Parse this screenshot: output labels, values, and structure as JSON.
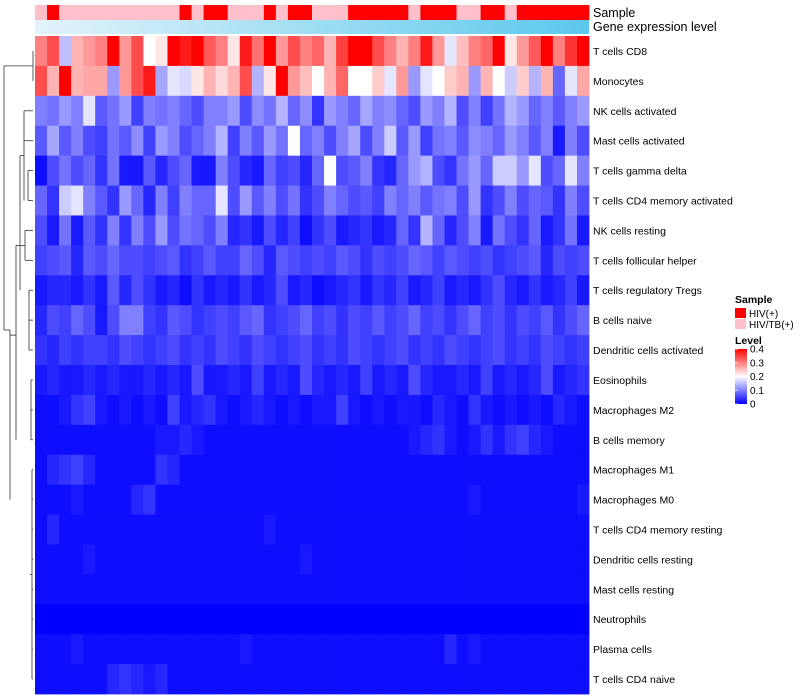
{
  "chart_data": {
    "type": "heatmap",
    "title": "",
    "annotation_tracks": [
      {
        "name": "Sample",
        "label": "Sample"
      },
      {
        "name": "Gene expression level",
        "label": "Gene expression level"
      }
    ],
    "n_samples": 46,
    "sample_groups": [
      "HIV/TB(+)",
      "HIV(+)",
      "HIV/TB(+)",
      "HIV/TB(+)",
      "HIV/TB(+)",
      "HIV/TB(+)",
      "HIV/TB(+)",
      "HIV/TB(+)",
      "HIV/TB(+)",
      "HIV/TB(+)",
      "HIV/TB(+)",
      "HIV/TB(+)",
      "HIV(+)",
      "HIV/TB(+)",
      "HIV(+)",
      "HIV(+)",
      "HIV/TB(+)",
      "HIV/TB(+)",
      "HIV/TB(+)",
      "HIV(+)",
      "HIV/TB(+)",
      "HIV(+)",
      "HIV(+)",
      "HIV/TB(+)",
      "HIV/TB(+)",
      "HIV/TB(+)",
      "HIV(+)",
      "HIV(+)",
      "HIV(+)",
      "HIV(+)",
      "HIV(+)",
      "HIV/TB(+)",
      "HIV(+)",
      "HIV(+)",
      "HIV(+)",
      "HIV/TB(+)",
      "HIV/TB(+)",
      "HIV(+)",
      "HIV(+)",
      "HIV/TB(+)",
      "HIV(+)",
      "HIV(+)",
      "HIV(+)",
      "HIV(+)",
      "HIV(+)",
      "HIV(+)"
    ],
    "rows": [
      "T cells CD8",
      "Monocytes",
      "NK cells activated",
      "Mast cells activated",
      "T cells gamma delta",
      "T cells CD4 memory activated",
      "NK cells resting",
      "T cells follicular helper",
      "T cells regulatory  Tregs",
      "B cells naive",
      "Dendritic cells activated",
      "Eosinophils",
      "Macrophages M2",
      "B cells memory",
      "Macrophages M1",
      "Macrophages M0",
      "T cells CD4 memory resting",
      "Dendritic cells resting",
      "Mast cells resting",
      "Neutrophils",
      "Plasma cells",
      "T cells CD4 naive"
    ],
    "values": [
      [
        0.3,
        0.34,
        0.15,
        0.26,
        0.28,
        0.3,
        0.42,
        0.28,
        0.34,
        0.2,
        0.22,
        0.42,
        0.38,
        0.42,
        0.33,
        0.3,
        0.22,
        0.38,
        0.31,
        0.42,
        0.28,
        0.34,
        0.3,
        0.32,
        0.26,
        0.35,
        0.42,
        0.42,
        0.34,
        0.3,
        0.26,
        0.3,
        0.38,
        0.28,
        0.18,
        0.25,
        0.3,
        0.32,
        0.4,
        0.22,
        0.28,
        0.33,
        0.42,
        0.3,
        0.36,
        0.4
      ],
      [
        0.34,
        0.26,
        0.4,
        0.26,
        0.27,
        0.27,
        0.12,
        0.28,
        0.34,
        0.38,
        0.13,
        0.18,
        0.17,
        0.22,
        0.26,
        0.23,
        0.26,
        0.34,
        0.14,
        0.22,
        0.4,
        0.28,
        0.25,
        0.2,
        0.26,
        0.32,
        0.2,
        0.2,
        0.24,
        0.18,
        0.28,
        0.12,
        0.18,
        0.2,
        0.24,
        0.26,
        0.12,
        0.26,
        0.2,
        0.16,
        0.24,
        0.14,
        0.26,
        0.08,
        0.18,
        0.27
      ],
      [
        0.1,
        0.09,
        0.12,
        0.1,
        0.18,
        0.07,
        0.09,
        0.12,
        0.05,
        0.1,
        0.09,
        0.1,
        0.08,
        0.06,
        0.1,
        0.1,
        0.12,
        0.06,
        0.11,
        0.09,
        0.14,
        0.08,
        0.11,
        0.04,
        0.12,
        0.1,
        0.08,
        0.13,
        0.1,
        0.11,
        0.08,
        0.06,
        0.12,
        0.1,
        0.14,
        0.06,
        0.1,
        0.05,
        0.09,
        0.14,
        0.12,
        0.08,
        0.1,
        0.07,
        0.1,
        0.12
      ],
      [
        0.07,
        0.13,
        0.07,
        0.1,
        0.06,
        0.05,
        0.09,
        0.07,
        0.11,
        0.05,
        0.12,
        0.1,
        0.06,
        0.08,
        0.1,
        0.14,
        0.05,
        0.1,
        0.07,
        0.12,
        0.09,
        0.2,
        0.08,
        0.1,
        0.06,
        0.1,
        0.13,
        0.06,
        0.1,
        0.16,
        0.07,
        0.12,
        0.05,
        0.09,
        0.1,
        0.07,
        0.11,
        0.1,
        0.08,
        0.12,
        0.1,
        0.07,
        0.1,
        0.02,
        0.1,
        0.06
      ],
      [
        0.01,
        0.06,
        0.09,
        0.06,
        0.08,
        0.04,
        0.09,
        0.02,
        0.02,
        0.07,
        0.03,
        0.06,
        0.08,
        0.02,
        0.02,
        0.1,
        0.06,
        0.03,
        0.02,
        0.08,
        0.05,
        0.06,
        0.03,
        0.08,
        0.2,
        0.06,
        0.07,
        0.1,
        0.04,
        0.03,
        0.08,
        0.12,
        0.14,
        0.06,
        0.04,
        0.09,
        0.12,
        0.08,
        0.16,
        0.16,
        0.12,
        0.18,
        0.06,
        0.08,
        0.18,
        0.1
      ],
      [
        0.08,
        0.04,
        0.16,
        0.18,
        0.1,
        0.07,
        0.04,
        0.12,
        0.08,
        0.03,
        0.1,
        0.05,
        0.1,
        0.08,
        0.08,
        0.18,
        0.06,
        0.12,
        0.07,
        0.1,
        0.06,
        0.09,
        0.04,
        0.06,
        0.1,
        0.08,
        0.06,
        0.07,
        0.05,
        0.1,
        0.08,
        0.1,
        0.07,
        0.09,
        0.1,
        0.06,
        0.12,
        0.04,
        0.06,
        0.1,
        0.06,
        0.08,
        0.07,
        0.04,
        0.1,
        0.06
      ],
      [
        0.06,
        0.02,
        0.09,
        0.02,
        0.07,
        0.04,
        0.1,
        0.04,
        0.1,
        0.06,
        0.12,
        0.06,
        0.09,
        0.08,
        0.06,
        0.1,
        0.03,
        0.04,
        0.02,
        0.06,
        0.03,
        0.05,
        0.01,
        0.04,
        0.06,
        0.02,
        0.03,
        0.04,
        0.02,
        0.03,
        0.08,
        0.04,
        0.14,
        0.08,
        0.03,
        0.06,
        0.1,
        0.02,
        0.09,
        0.06,
        0.04,
        0.08,
        0.02,
        0.04,
        0.09,
        0.02
      ],
      [
        0.05,
        0.06,
        0.07,
        0.03,
        0.07,
        0.06,
        0.08,
        0.06,
        0.06,
        0.05,
        0.06,
        0.07,
        0.04,
        0.05,
        0.07,
        0.05,
        0.05,
        0.08,
        0.06,
        0.03,
        0.07,
        0.06,
        0.05,
        0.06,
        0.05,
        0.07,
        0.06,
        0.04,
        0.06,
        0.05,
        0.06,
        0.08,
        0.07,
        0.05,
        0.07,
        0.06,
        0.05,
        0.06,
        0.04,
        0.05,
        0.06,
        0.07,
        0.03,
        0.06,
        0.05,
        0.06
      ],
      [
        0.02,
        0.03,
        0.03,
        0.02,
        0.04,
        0.02,
        0.07,
        0.03,
        0.06,
        0.04,
        0.02,
        0.03,
        0.01,
        0.04,
        0.02,
        0.03,
        0.02,
        0.04,
        0.02,
        0.03,
        0.06,
        0.02,
        0.03,
        0.01,
        0.02,
        0.03,
        0.04,
        0.02,
        0.04,
        0.03,
        0.05,
        0.02,
        0.03,
        0.05,
        0.02,
        0.03,
        0.02,
        0.04,
        0.06,
        0.03,
        0.02,
        0.04,
        0.02,
        0.03,
        0.05,
        0.02
      ],
      [
        0.03,
        0.06,
        0.05,
        0.08,
        0.06,
        0.02,
        0.06,
        0.1,
        0.1,
        0.05,
        0.04,
        0.07,
        0.06,
        0.04,
        0.05,
        0.06,
        0.05,
        0.07,
        0.08,
        0.04,
        0.05,
        0.06,
        0.08,
        0.05,
        0.06,
        0.04,
        0.06,
        0.05,
        0.07,
        0.05,
        0.06,
        0.08,
        0.05,
        0.06,
        0.04,
        0.06,
        0.08,
        0.05,
        0.06,
        0.04,
        0.06,
        0.05,
        0.07,
        0.04,
        0.06,
        0.08
      ],
      [
        0.04,
        0.03,
        0.05,
        0.04,
        0.05,
        0.05,
        0.04,
        0.06,
        0.05,
        0.04,
        0.05,
        0.06,
        0.04,
        0.05,
        0.04,
        0.06,
        0.05,
        0.04,
        0.06,
        0.05,
        0.04,
        0.05,
        0.06,
        0.04,
        0.05,
        0.04,
        0.06,
        0.05,
        0.04,
        0.05,
        0.06,
        0.04,
        0.05,
        0.04,
        0.06,
        0.05,
        0.04,
        0.05,
        0.06,
        0.04,
        0.05,
        0.04,
        0.06,
        0.05,
        0.04,
        0.05
      ],
      [
        0.02,
        0.03,
        0.02,
        0.02,
        0.03,
        0.02,
        0.03,
        0.02,
        0.02,
        0.03,
        0.02,
        0.03,
        0.02,
        0.06,
        0.02,
        0.02,
        0.03,
        0.02,
        0.05,
        0.02,
        0.03,
        0.02,
        0.06,
        0.03,
        0.02,
        0.03,
        0.02,
        0.05,
        0.02,
        0.03,
        0.02,
        0.06,
        0.03,
        0.02,
        0.02,
        0.03,
        0.02,
        0.05,
        0.02,
        0.03,
        0.02,
        0.03,
        0.06,
        0.02,
        0.03,
        0.04
      ],
      [
        0.01,
        0.01,
        0.02,
        0.04,
        0.05,
        0.02,
        0.01,
        0.02,
        0.01,
        0.02,
        0.01,
        0.05,
        0.02,
        0.03,
        0.04,
        0.02,
        0.01,
        0.02,
        0.03,
        0.02,
        0.01,
        0.02,
        0.01,
        0.02,
        0.02,
        0.05,
        0.02,
        0.01,
        0.02,
        0.01,
        0.02,
        0.02,
        0.01,
        0.03,
        0.02,
        0.01,
        0.04,
        0.02,
        0.01,
        0.02,
        0.01,
        0.02,
        0.01,
        0.03,
        0.02,
        0.01
      ],
      [
        0.01,
        0.01,
        0.01,
        0.01,
        0.01,
        0.01,
        0.01,
        0.01,
        0.01,
        0.01,
        0.02,
        0.02,
        0.03,
        0.02,
        0.01,
        0.01,
        0.01,
        0.01,
        0.01,
        0.01,
        0.01,
        0.01,
        0.01,
        0.01,
        0.01,
        0.01,
        0.01,
        0.01,
        0.01,
        0.01,
        0.01,
        0.02,
        0.03,
        0.04,
        0.02,
        0.01,
        0.02,
        0.04,
        0.02,
        0.04,
        0.05,
        0.03,
        0.02,
        0.01,
        0.01,
        0.01
      ],
      [
        0.01,
        0.03,
        0.04,
        0.05,
        0.03,
        0.01,
        0.01,
        0.01,
        0.01,
        0.01,
        0.04,
        0.03,
        0.01,
        0.01,
        0.01,
        0.01,
        0.01,
        0.01,
        0.01,
        0.01,
        0.01,
        0.01,
        0.01,
        0.01,
        0.01,
        0.01,
        0.01,
        0.01,
        0.01,
        0.01,
        0.01,
        0.01,
        0.01,
        0.01,
        0.01,
        0.01,
        0.01,
        0.01,
        0.01,
        0.01,
        0.01,
        0.01,
        0.01,
        0.01,
        0.01,
        0.01
      ],
      [
        0.01,
        0.01,
        0.01,
        0.02,
        0.01,
        0.01,
        0.01,
        0.01,
        0.03,
        0.04,
        0.01,
        0.01,
        0.01,
        0.01,
        0.01,
        0.01,
        0.01,
        0.01,
        0.01,
        0.01,
        0.01,
        0.01,
        0.01,
        0.01,
        0.01,
        0.01,
        0.01,
        0.01,
        0.01,
        0.01,
        0.01,
        0.01,
        0.01,
        0.01,
        0.01,
        0.01,
        0.02,
        0.01,
        0.01,
        0.01,
        0.01,
        0.01,
        0.01,
        0.01,
        0.01,
        0.02
      ],
      [
        0.01,
        0.03,
        0.01,
        0.01,
        0.01,
        0.01,
        0.01,
        0.01,
        0.01,
        0.01,
        0.01,
        0.01,
        0.01,
        0.01,
        0.01,
        0.01,
        0.01,
        0.01,
        0.01,
        0.02,
        0.01,
        0.01,
        0.01,
        0.01,
        0.01,
        0.01,
        0.01,
        0.01,
        0.01,
        0.01,
        0.01,
        0.01,
        0.01,
        0.01,
        0.01,
        0.01,
        0.01,
        0.01,
        0.01,
        0.01,
        0.01,
        0.01,
        0.01,
        0.01,
        0.01,
        0.01
      ],
      [
        0.01,
        0.01,
        0.01,
        0.01,
        0.02,
        0.01,
        0.01,
        0.01,
        0.01,
        0.01,
        0.01,
        0.01,
        0.01,
        0.01,
        0.01,
        0.01,
        0.01,
        0.01,
        0.01,
        0.01,
        0.01,
        0.01,
        0.02,
        0.01,
        0.01,
        0.01,
        0.01,
        0.01,
        0.01,
        0.01,
        0.01,
        0.01,
        0.01,
        0.01,
        0.01,
        0.01,
        0.01,
        0.01,
        0.01,
        0.01,
        0.01,
        0.01,
        0.01,
        0.01,
        0.01,
        0.01
      ],
      [
        0.01,
        0.01,
        0.01,
        0.01,
        0.01,
        0.01,
        0.01,
        0.01,
        0.01,
        0.01,
        0.01,
        0.01,
        0.01,
        0.01,
        0.01,
        0.01,
        0.01,
        0.01,
        0.01,
        0.01,
        0.01,
        0.01,
        0.01,
        0.01,
        0.01,
        0.01,
        0.01,
        0.01,
        0.01,
        0.01,
        0.01,
        0.01,
        0.01,
        0.01,
        0.01,
        0.01,
        0.01,
        0.01,
        0.01,
        0.01,
        0.01,
        0.01,
        0.01,
        0.01,
        0.01,
        0.01
      ],
      [
        0.0,
        0.0,
        0.0,
        0.0,
        0.0,
        0.0,
        0.0,
        0.0,
        0.0,
        0.0,
        0.0,
        0.0,
        0.0,
        0.0,
        0.0,
        0.0,
        0.0,
        0.0,
        0.0,
        0.0,
        0.0,
        0.0,
        0.0,
        0.0,
        0.0,
        0.0,
        0.0,
        0.0,
        0.0,
        0.0,
        0.0,
        0.0,
        0.0,
        0.0,
        0.0,
        0.0,
        0.0,
        0.0,
        0.0,
        0.0,
        0.0,
        0.0,
        0.0,
        0.0,
        0.0,
        0.0
      ],
      [
        0.01,
        0.01,
        0.01,
        0.02,
        0.01,
        0.01,
        0.01,
        0.01,
        0.01,
        0.01,
        0.01,
        0.01,
        0.01,
        0.01,
        0.01,
        0.01,
        0.01,
        0.02,
        0.01,
        0.01,
        0.01,
        0.01,
        0.01,
        0.01,
        0.01,
        0.01,
        0.01,
        0.01,
        0.01,
        0.01,
        0.01,
        0.01,
        0.01,
        0.01,
        0.03,
        0.01,
        0.02,
        0.01,
        0.01,
        0.01,
        0.01,
        0.01,
        0.01,
        0.01,
        0.01,
        0.01
      ],
      [
        0.01,
        0.01,
        0.01,
        0.01,
        0.01,
        0.01,
        0.03,
        0.04,
        0.03,
        0.02,
        0.03,
        0.01,
        0.01,
        0.01,
        0.01,
        0.01,
        0.01,
        0.01,
        0.01,
        0.01,
        0.01,
        0.01,
        0.01,
        0.01,
        0.01,
        0.01,
        0.01,
        0.01,
        0.01,
        0.01,
        0.01,
        0.01,
        0.01,
        0.01,
        0.01,
        0.01,
        0.01,
        0.01,
        0.01,
        0.01,
        0.01,
        0.01,
        0.01,
        0.01,
        0.01,
        0.01
      ]
    ],
    "expression_level_gradient": [
      "#e3f3fb",
      "#5bc8ec"
    ],
    "colorscale": {
      "min": 0,
      "max": 0.4,
      "colors": [
        "#0000ff",
        "#ffffff",
        "#ff0000"
      ],
      "ticks": [
        0.4,
        0.3,
        0.2,
        0.1,
        0
      ]
    },
    "legend": {
      "sample_title": "Sample",
      "sample_entries": [
        {
          "label": "HIV(+)",
          "color": "#ff0000"
        },
        {
          "label": "HIV/TB(+)",
          "color": "#ffc0cb"
        }
      ],
      "level_title": "Level",
      "level_tick_labels": [
        "0.4",
        "0.3",
        "0.2",
        "0.1",
        "0"
      ]
    }
  }
}
